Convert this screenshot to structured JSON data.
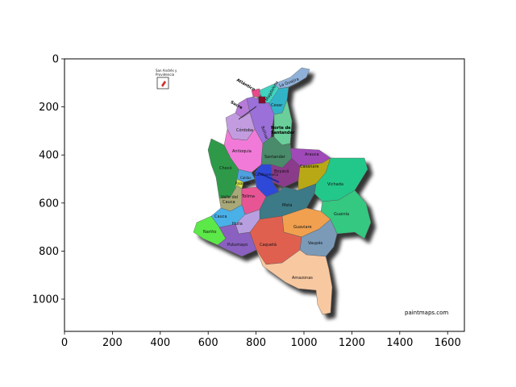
{
  "axes": {
    "x_ticks": [
      "0",
      "200",
      "400",
      "600",
      "800",
      "1000",
      "1200",
      "1400",
      "1600"
    ],
    "y_ticks": [
      "0",
      "200",
      "400",
      "600",
      "800",
      "1000"
    ]
  },
  "map": {
    "credit": "paintmaps.com",
    "inset_label_line1": "San Andrés y",
    "inset_label_line2": "Providencia",
    "departments": {
      "la_guajira": "La Guajira",
      "atlantico": "Atlántico",
      "magdalena": "Magdalena",
      "cesar": "Cesar",
      "sucre": "Sucre",
      "bolivar": "Bolívar",
      "cordoba": "Córdoba",
      "norte_de_santander_line1": "Norte de",
      "norte_de_santander_line2": "Santander",
      "antioquia": "Antioquia",
      "santander": "Santander",
      "arauca": "Arauca",
      "casanare": "Casanare",
      "choco": "Chocó",
      "boyaca": "Boyacá",
      "caldas": "Caldas",
      "risaralda": "Risaralda",
      "cundinamarca": "Cundinamarca",
      "vichada": "Vichada",
      "valle_line1": "Valle del",
      "valle_line2": "Cauca",
      "tolima": "Tolima",
      "meta": "Meta",
      "cauca": "Cauca",
      "huila": "Huila",
      "guainia": "Guainía",
      "guaviare": "Guaviare",
      "narino": "Nariño",
      "putumayo": "Putumayo",
      "caqueta": "Caquetá",
      "vaupes": "Vaupés",
      "amazonas": "Amazonas"
    }
  }
}
